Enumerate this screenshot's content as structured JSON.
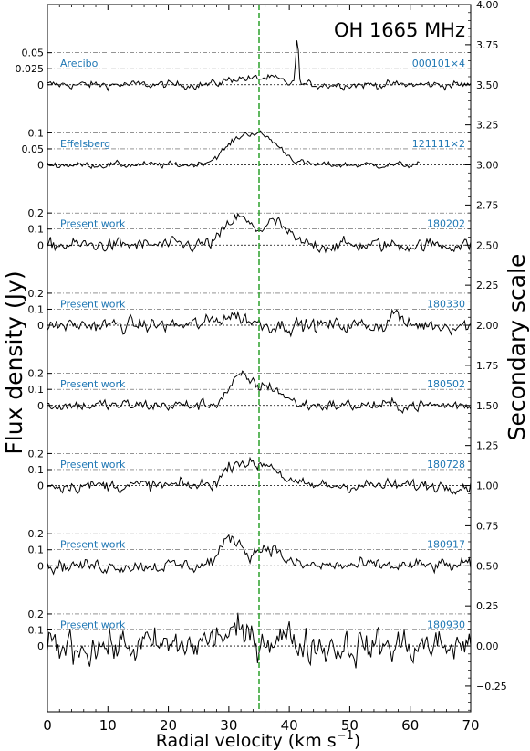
{
  "chart_data": {
    "type": "line",
    "title": "OH 1665 MHz",
    "xlabel": "Radial velocity (km s$^{-1}$)",
    "xlabel_main": "Radial velocity (km s",
    "xlabel_sup": "−1",
    "xlabel_end": ")",
    "ylabel": "Flux density (Jy)",
    "y2label": "Secondary scale",
    "xlim": [
      0,
      70
    ],
    "x_ticks": [
      0,
      10,
      20,
      30,
      40,
      50,
      60,
      70
    ],
    "x_tick_labels": [
      "0",
      "10",
      "20",
      "30",
      "40",
      "50",
      "60",
      "70"
    ],
    "y2lim": [
      -0.41,
      4.0
    ],
    "y2_ticks": [
      -0.25,
      0.0,
      0.25,
      0.5,
      0.75,
      1.0,
      1.25,
      1.5,
      1.75,
      2.0,
      2.25,
      2.5,
      2.75,
      3.0,
      3.25,
      3.5,
      3.75,
      4.0
    ],
    "y2_tick_labels": [
      "−0.25",
      "0.00",
      "0.25",
      "0.50",
      "0.75",
      "1.00",
      "1.25",
      "1.50",
      "1.75",
      "2.00",
      "2.25",
      "2.50",
      "2.75",
      "3.00",
      "3.25",
      "3.50",
      "3.75",
      "4.00"
    ],
    "grid": false,
    "vertical_line": {
      "x": 35.0,
      "color": "#2ca02c",
      "style": "dashed"
    },
    "colors": {
      "trace": "#000000",
      "label": "#1f77b4",
      "marker": "#2ca02c",
      "ref": "#555555"
    },
    "series": [
      {
        "name": "Arecibo",
        "tag": "000101×4",
        "offset": 3.5,
        "scale": 4,
        "x_range": [
          0,
          70
        ],
        "noise": 0.0075,
        "ticks": [
          0,
          0.025,
          0.05
        ],
        "tick_labels": [
          "0",
          "0.025",
          "0.05"
        ],
        "features": [
          {
            "center": 31.5,
            "amp": 0.01,
            "width": 2.0
          },
          {
            "center": 36.5,
            "amp": 0.01,
            "width": 2.0
          },
          {
            "center": 41.3,
            "amp": 0.065,
            "width": 0.25
          }
        ]
      },
      {
        "name": "Effelsberg",
        "tag": "121111×2",
        "offset": 3.0,
        "scale": 2,
        "x_range": [
          0,
          61.5
        ],
        "noise": 0.012,
        "ticks": [
          0,
          0.05,
          0.1
        ],
        "tick_labels": [
          "0",
          "0.05",
          "0.1"
        ],
        "features": [
          {
            "center": 32.5,
            "amp": 0.085,
            "width": 3.0
          },
          {
            "center": 37.0,
            "amp": 0.05,
            "width": 2.5
          }
        ]
      },
      {
        "name": "Present work",
        "tag": "180202",
        "offset": 2.5,
        "scale": 1,
        "x_range": [
          0,
          70
        ],
        "noise": 0.05,
        "ticks": [
          0,
          0.1,
          0.2
        ],
        "tick_labels": [
          "0",
          "0.1",
          "0.2"
        ],
        "features": [
          {
            "center": 31.5,
            "amp": 0.17,
            "width": 2.0
          },
          {
            "center": 37.5,
            "amp": 0.14,
            "width": 2.0
          }
        ]
      },
      {
        "name": "Present work",
        "tag": "180330",
        "offset": 2.0,
        "scale": 1,
        "x_range": [
          0,
          70
        ],
        "noise": 0.055,
        "ticks": [
          0,
          0.1,
          0.2
        ],
        "tick_labels": [
          "0",
          "0.1",
          "0.2"
        ],
        "features": [
          {
            "center": 30.5,
            "amp": 0.06,
            "width": 2.5
          },
          {
            "center": 57.5,
            "amp": 0.1,
            "width": 0.6
          }
        ]
      },
      {
        "name": "Present work",
        "tag": "180502",
        "offset": 1.5,
        "scale": 1,
        "x_range": [
          0,
          70
        ],
        "noise": 0.045,
        "ticks": [
          0,
          0.1,
          0.2
        ],
        "tick_labels": [
          "0",
          "0.1",
          "0.2"
        ],
        "features": [
          {
            "center": 32.0,
            "amp": 0.17,
            "width": 2.0
          },
          {
            "center": 37.0,
            "amp": 0.11,
            "width": 2.0
          }
        ]
      },
      {
        "name": "Present work",
        "tag": "180728",
        "offset": 1.0,
        "scale": 1,
        "x_range": [
          0,
          70
        ],
        "noise": 0.045,
        "ticks": [
          0,
          0.1,
          0.2
        ],
        "tick_labels": [
          "0",
          "0.1",
          "0.2"
        ],
        "features": [
          {
            "center": 31.5,
            "amp": 0.15,
            "width": 2.0
          },
          {
            "center": 36.5,
            "amp": 0.13,
            "width": 2.0
          }
        ]
      },
      {
        "name": "Present work",
        "tag": "180917",
        "offset": 0.5,
        "scale": 1,
        "x_range": [
          0,
          70
        ],
        "noise": 0.05,
        "ticks": [
          0,
          0.1,
          0.2
        ],
        "tick_labels": [
          "0",
          "0.1",
          "0.2"
        ],
        "features": [
          {
            "center": 30.5,
            "amp": 0.17,
            "width": 1.8
          },
          {
            "center": 36.5,
            "amp": 0.12,
            "width": 2.0
          }
        ]
      },
      {
        "name": "Present work",
        "tag": "180930",
        "offset": 0.0,
        "scale": 1,
        "x_range": [
          0,
          70
        ],
        "noise": 0.13,
        "ticks": [
          0,
          0.1,
          0.2
        ],
        "tick_labels": [
          "0",
          "0.1",
          "0.2"
        ],
        "features": [
          {
            "center": 30.0,
            "amp": 0.08,
            "width": 2.5
          },
          {
            "center": 38.0,
            "amp": 0.06,
            "width": 2.5
          }
        ]
      }
    ]
  }
}
